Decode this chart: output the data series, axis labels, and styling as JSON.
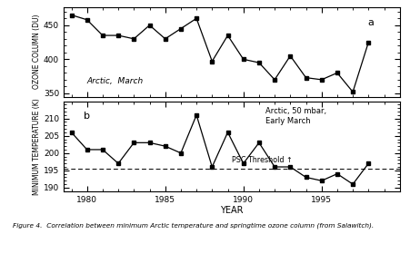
{
  "years": [
    1979,
    1980,
    1981,
    1982,
    1983,
    1984,
    1985,
    1986,
    1987,
    1988,
    1989,
    1990,
    1991,
    1992,
    1993,
    1994,
    1995,
    1996,
    1997,
    1998
  ],
  "ozone": [
    465,
    458,
    435,
    435,
    430,
    450,
    430,
    445,
    460,
    397,
    435,
    400,
    395,
    370,
    405,
    373,
    370,
    380,
    352,
    425
  ],
  "temp": [
    206,
    201,
    201,
    197,
    203,
    203,
    202,
    200,
    211,
    196,
    206,
    197,
    203,
    196,
    196,
    193,
    192,
    194,
    191,
    197
  ],
  "psc_threshold": 195.5,
  "ozone_ylabel": "OZONE COLUMN (DU)",
  "temp_ylabel": "MINIMUM TEMPERATURE (K)",
  "xlabel": "YEAR",
  "label_a": "a",
  "label_b": "b",
  "text_a": "Arctic,  March",
  "text_b": "Arctic, 50 mbar,\nEarly March",
  "psc_text": "PSC Threshold ↑",
  "caption": "Figure 4.  Correlation between minimum Arctic temperature and springtime ozone column (from Salawitch).",
  "ozone_ylim": [
    345,
    477
  ],
  "temp_ylim": [
    189,
    215
  ],
  "ozone_yticks": [
    350,
    400,
    450
  ],
  "temp_yticks": [
    190,
    195,
    200,
    205,
    210
  ],
  "xticks": [
    1980,
    1985,
    1990,
    1995
  ],
  "xlim": [
    1978.5,
    2000.0
  ],
  "line_color": "black",
  "marker": "s",
  "markersize": 2.8,
  "linewidth": 0.9
}
